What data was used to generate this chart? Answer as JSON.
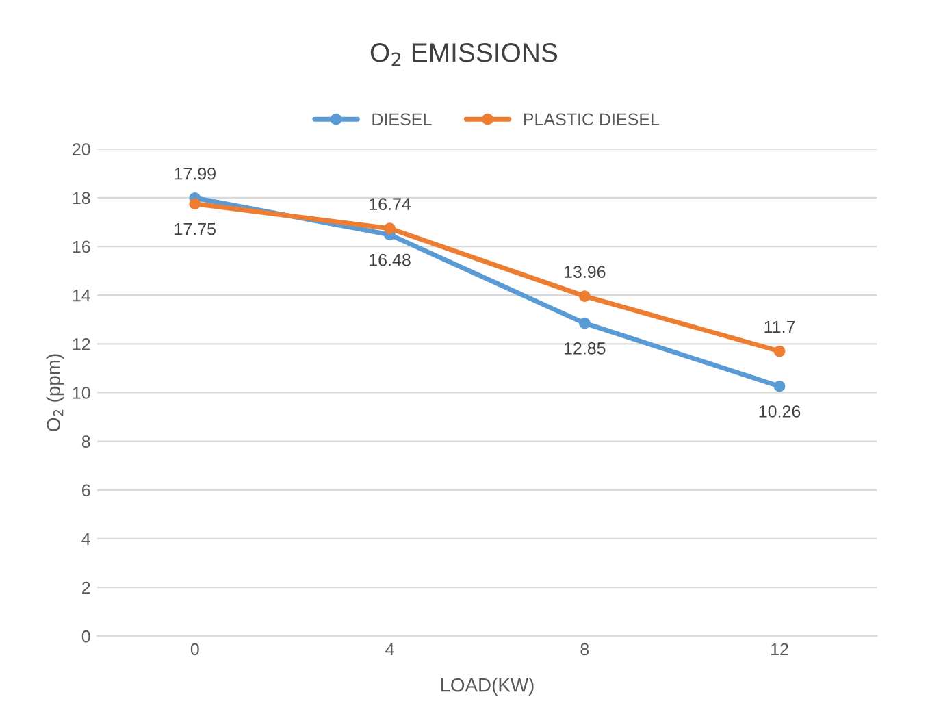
{
  "chart_data": {
    "type": "line",
    "title": "O$_{2}$ EMISSIONS",
    "xlabel": "LOAD(KW)",
    "ylabel": "O$_{2}$ (ppm)",
    "categories": [
      "0",
      "4",
      "8",
      "12"
    ],
    "series": [
      {
        "name": "DIESEL",
        "color": "#5b9bd5",
        "values": [
          17.99,
          16.48,
          12.85,
          10.26
        ]
      },
      {
        "name": "PLASTIC DIESEL",
        "color": "#ed7d31",
        "values": [
          17.75,
          16.74,
          13.96,
          11.7
        ]
      }
    ],
    "ylim": [
      0,
      20
    ],
    "yticks": [
      0,
      2,
      4,
      6,
      8,
      10,
      12,
      14,
      16,
      18,
      20
    ],
    "grid": "y",
    "legend": "top",
    "marker": "circle",
    "line_style": "solid",
    "data_labels": true
  }
}
